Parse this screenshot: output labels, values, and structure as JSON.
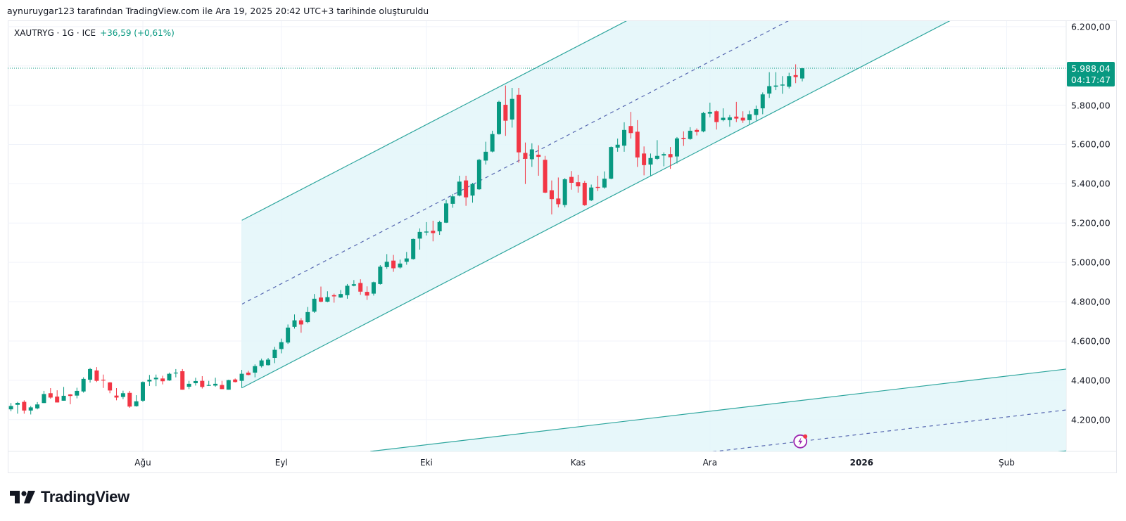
{
  "header": {
    "attribution": "aynuruygar123 tarafından TradingView.com ile Ara 19, 2025 20:42 UTC+3 tarihinde oluşturuldu",
    "symbol": "XAUTRYG · 1G · ICE",
    "change": "+36,59 (+0,61%)"
  },
  "price_badge": {
    "price": "5.988,04",
    "countdown": "04:17:47"
  },
  "logo": {
    "text": "TradingView"
  },
  "colors": {
    "up": "#089981",
    "down": "#f23645",
    "channel_line": "#2ea69e",
    "channel_fill": "#e3f6f9",
    "midline": "#5566b0",
    "idea_icon": "#9c27b0"
  },
  "chart_data": {
    "type": "candlestick",
    "title": "XAUTRYG · 1G · ICE",
    "ylim": [
      4038,
      6228
    ],
    "last_price": 5988.04,
    "y_ticks": [
      {
        "value": 6200,
        "label": "6.200,00"
      },
      {
        "value": 6000,
        "label": ""
      },
      {
        "value": 5800,
        "label": "5.800,00"
      },
      {
        "value": 5600,
        "label": "5.600,00"
      },
      {
        "value": 5400,
        "label": "5.400,00"
      },
      {
        "value": 5200,
        "label": "5.200,00"
      },
      {
        "value": 5000,
        "label": "5.000,00"
      },
      {
        "value": 4800,
        "label": "4.800,00"
      },
      {
        "value": 4600,
        "label": "4.600,00"
      },
      {
        "value": 4400,
        "label": "4.400,00"
      },
      {
        "value": 4200,
        "label": "4.200,00"
      }
    ],
    "x_ticks": [
      {
        "bar": 21,
        "label": "Ağu"
      },
      {
        "bar": 42,
        "label": "Eyl"
      },
      {
        "bar": 64,
        "label": "Eki"
      },
      {
        "bar": 87,
        "label": "Kas"
      },
      {
        "bar": 107,
        "label": "Ara"
      },
      {
        "bar": 130,
        "label": "2026",
        "year": true
      },
      {
        "bar": 152,
        "label": "Şub"
      }
    ],
    "ohlc_format": [
      "open",
      "high",
      "low",
      "close"
    ],
    "ohlc": [
      [
        4252,
        4284,
        4242,
        4269
      ],
      [
        4275,
        4290,
        4230,
        4285
      ],
      [
        4290,
        4298,
        4230,
        4246
      ],
      [
        4246,
        4269,
        4226,
        4262
      ],
      [
        4257,
        4289,
        4252,
        4277
      ],
      [
        4284,
        4346,
        4284,
        4330
      ],
      [
        4334,
        4360,
        4306,
        4312
      ],
      [
        4317,
        4349,
        4287,
        4287
      ],
      [
        4296,
        4366,
        4296,
        4321
      ],
      [
        4328,
        4330,
        4278,
        4320
      ],
      [
        4322,
        4362,
        4308,
        4346
      ],
      [
        4343,
        4415,
        4337,
        4407
      ],
      [
        4403,
        4463,
        4388,
        4457
      ],
      [
        4450,
        4467,
        4391,
        4397
      ],
      [
        4403,
        4429,
        4361,
        4399
      ],
      [
        4389,
        4391,
        4334,
        4348
      ],
      [
        4322,
        4360,
        4298,
        4312
      ],
      [
        4315,
        4347,
        4304,
        4334
      ],
      [
        4336,
        4346,
        4260,
        4266
      ],
      [
        4268,
        4324,
        4266,
        4293
      ],
      [
        4296,
        4394,
        4290,
        4391
      ],
      [
        4394,
        4427,
        4371,
        4403
      ],
      [
        4405,
        4429,
        4370,
        4413
      ],
      [
        4409,
        4423,
        4379,
        4395
      ],
      [
        4399,
        4439,
        4397,
        4433
      ],
      [
        4436,
        4457,
        4415,
        4439
      ],
      [
        4446,
        4457,
        4352,
        4352
      ],
      [
        4367,
        4397,
        4355,
        4382
      ],
      [
        4385,
        4413,
        4373,
        4396
      ],
      [
        4397,
        4421,
        4358,
        4366
      ],
      [
        4373,
        4397,
        4371,
        4376
      ],
      [
        4373,
        4413,
        4367,
        4382
      ],
      [
        4376,
        4397,
        4355,
        4355
      ],
      [
        4352,
        4403,
        4352,
        4401
      ],
      [
        4404,
        4409,
        4389,
        4391
      ],
      [
        4397,
        4453,
        4361,
        4433
      ],
      [
        4439,
        4448,
        4425,
        4427
      ],
      [
        4439,
        4481,
        4415,
        4472
      ],
      [
        4472,
        4510,
        4465,
        4501
      ],
      [
        4477,
        4514,
        4475,
        4505
      ],
      [
        4514,
        4570,
        4487,
        4555
      ],
      [
        4559,
        4612,
        4537,
        4594
      ],
      [
        4592,
        4684,
        4585,
        4668
      ],
      [
        4672,
        4735,
        4663,
        4705
      ],
      [
        4705,
        4716,
        4642,
        4684
      ],
      [
        4696,
        4773,
        4690,
        4747
      ],
      [
        4749,
        4839,
        4743,
        4815
      ],
      [
        4821,
        4877,
        4797,
        4800
      ],
      [
        4800,
        4853,
        4797,
        4823
      ],
      [
        4833,
        4841,
        4795,
        4827
      ],
      [
        4821,
        4859,
        4819,
        4839
      ],
      [
        4833,
        4890,
        4815,
        4881
      ],
      [
        4881,
        4910,
        4878,
        4889
      ],
      [
        4895,
        4914,
        4835,
        4851
      ],
      [
        4850,
        4878,
        4809,
        4831
      ],
      [
        4841,
        4902,
        4831,
        4899
      ],
      [
        4890,
        4986,
        4887,
        4978
      ],
      [
        4976,
        5042,
        4967,
        5003
      ],
      [
        5009,
        5038,
        4952,
        4970
      ],
      [
        4974,
        5014,
        4968,
        4994
      ],
      [
        5003,
        5053,
        4988,
        5020
      ],
      [
        5017,
        5121,
        5014,
        5119
      ],
      [
        5121,
        5173,
        5065,
        5155
      ],
      [
        5152,
        5205,
        5137,
        5157
      ],
      [
        5161,
        5212,
        5107,
        5149
      ],
      [
        5158,
        5212,
        5140,
        5205
      ],
      [
        5202,
        5319,
        5200,
        5300
      ],
      [
        5298,
        5348,
        5278,
        5336
      ],
      [
        5340,
        5441,
        5336,
        5411
      ],
      [
        5417,
        5441,
        5288,
        5331
      ],
      [
        5340,
        5405,
        5304,
        5399
      ],
      [
        5372,
        5527,
        5369,
        5522
      ],
      [
        5518,
        5614,
        5498,
        5563
      ],
      [
        5564,
        5670,
        5560,
        5653
      ],
      [
        5653,
        5823,
        5650,
        5817
      ],
      [
        5802,
        5900,
        5644,
        5721
      ],
      [
        5727,
        5888,
        5686,
        5832
      ],
      [
        5853,
        5888,
        5507,
        5560
      ],
      [
        5557,
        5610,
        5399,
        5527
      ],
      [
        5525,
        5606,
        5486,
        5575
      ],
      [
        5548,
        5596,
        5441,
        5537
      ],
      [
        5522,
        5542,
        5352,
        5355
      ],
      [
        5367,
        5417,
        5244,
        5322
      ],
      [
        5325,
        5432,
        5280,
        5296
      ],
      [
        5292,
        5429,
        5280,
        5423
      ],
      [
        5435,
        5465,
        5370,
        5405
      ],
      [
        5408,
        5445,
        5355,
        5387
      ],
      [
        5405,
        5415,
        5288,
        5291
      ],
      [
        5316,
        5396,
        5312,
        5381
      ],
      [
        5384,
        5441,
        5363,
        5379
      ],
      [
        5381,
        5463,
        5375,
        5426
      ],
      [
        5426,
        5590,
        5423,
        5587
      ],
      [
        5584,
        5630,
        5563,
        5599
      ],
      [
        5594,
        5713,
        5563,
        5674
      ],
      [
        5694,
        5766,
        5630,
        5658
      ],
      [
        5665,
        5724,
        5486,
        5534
      ],
      [
        5554,
        5590,
        5443,
        5495
      ],
      [
        5498,
        5554,
        5441,
        5531
      ],
      [
        5527,
        5622,
        5522,
        5542
      ],
      [
        5544,
        5560,
        5489,
        5551
      ],
      [
        5551,
        5587,
        5476,
        5535
      ],
      [
        5539,
        5638,
        5503,
        5631
      ],
      [
        5634,
        5667,
        5593,
        5628
      ],
      [
        5628,
        5688,
        5624,
        5670
      ],
      [
        5674,
        5682,
        5646,
        5664
      ],
      [
        5667,
        5766,
        5662,
        5760
      ],
      [
        5757,
        5813,
        5738,
        5766
      ],
      [
        5769,
        5774,
        5676,
        5714
      ],
      [
        5724,
        5784,
        5718,
        5736
      ],
      [
        5724,
        5750,
        5690,
        5738
      ],
      [
        5742,
        5817,
        5714,
        5732
      ],
      [
        5736,
        5769,
        5710,
        5722
      ],
      [
        5724,
        5772,
        5702,
        5754
      ],
      [
        5750,
        5798,
        5722,
        5781
      ],
      [
        5784,
        5865,
        5754,
        5855
      ],
      [
        5859,
        5968,
        5837,
        5897
      ],
      [
        5894,
        5968,
        5877,
        5900
      ],
      [
        5900,
        5948,
        5858,
        5905
      ],
      [
        5894,
        5965,
        5885,
        5948
      ],
      [
        5953,
        6008,
        5912,
        5943
      ],
      [
        5936,
        5990,
        5921,
        5988.04
      ]
    ],
    "channels": [
      {
        "name": "parallel-channel-main",
        "start_bar": 36,
        "end_bar": 165,
        "upper": 5214,
        "middle": 4787,
        "lower": 4361,
        "slope_per_bar": 17.4
      },
      {
        "name": "parallel-channel-projection",
        "start_bar": 55.5,
        "end_bar": 165,
        "upper": 4038,
        "middle": 3830,
        "lower": 3622,
        "slope_per_bar": 3.97
      }
    ],
    "idea_marker": {
      "bar": 120.7,
      "channel": 1
    }
  }
}
